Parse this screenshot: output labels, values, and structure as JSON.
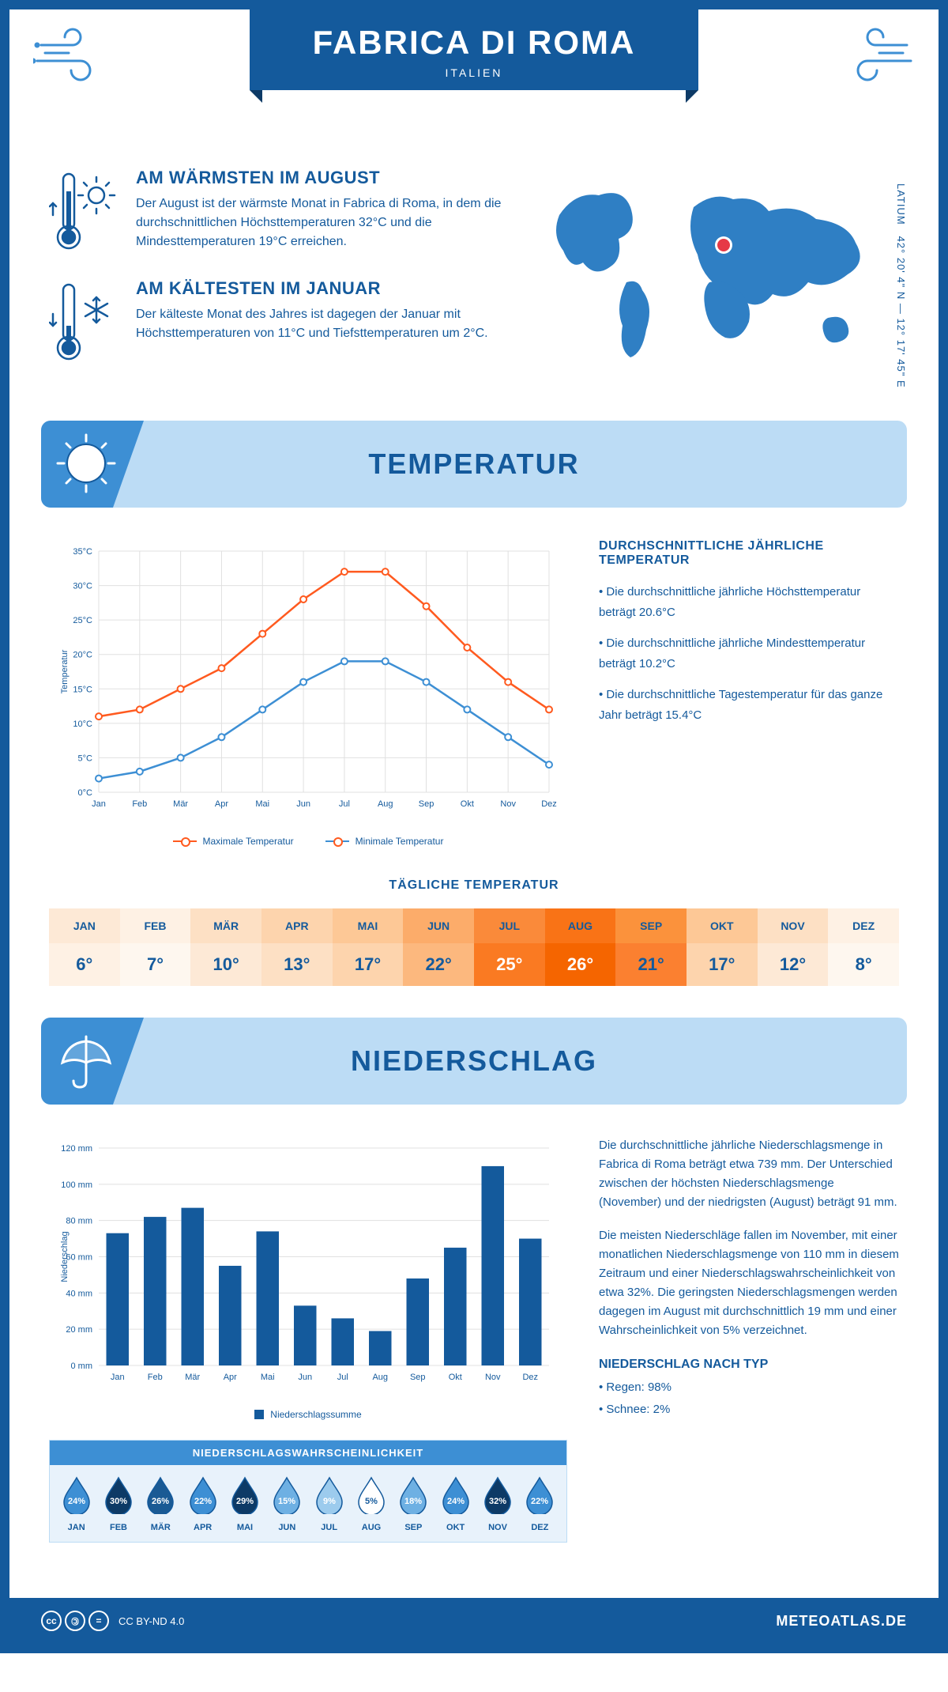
{
  "header": {
    "title": "FABRICA DI ROMA",
    "subtitle": "ITALIEN"
  },
  "coords": {
    "text": "42° 20' 4\" N — 12° 17' 45\" E",
    "region": "LATIUM"
  },
  "intro": {
    "warm": {
      "title": "AM WÄRMSTEN IM AUGUST",
      "text": "Der August ist der wärmste Monat in Fabrica di Roma, in dem die durchschnittlichen Höchsttemperaturen 32°C und die Mindesttemperaturen 19°C erreichen."
    },
    "cold": {
      "title": "AM KÄLTESTEN IM JANUAR",
      "text": "Der kälteste Monat des Jahres ist dagegen der Januar mit Höchsttemperaturen von 11°C und Tiefsttemperaturen um 2°C."
    }
  },
  "temp_section": {
    "title": "TEMPERATUR",
    "info_title": "DURCHSCHNITTLICHE JÄHRLICHE TEMPERATUR",
    "bullet1": "• Die durchschnittliche jährliche Höchsttemperatur beträgt 20.6°C",
    "bullet2": "• Die durchschnittliche jährliche Mindesttemperatur beträgt 10.2°C",
    "bullet3": "• Die durchschnittliche Tagestemperatur für das ganze Jahr beträgt 15.4°C",
    "chart": {
      "months": [
        "Jan",
        "Feb",
        "Mär",
        "Apr",
        "Mai",
        "Jun",
        "Jul",
        "Aug",
        "Sep",
        "Okt",
        "Nov",
        "Dez"
      ],
      "max_values": [
        11,
        12,
        15,
        18,
        23,
        28,
        32,
        32,
        27,
        21,
        16,
        12
      ],
      "min_values": [
        2,
        3,
        5,
        8,
        12,
        16,
        19,
        19,
        16,
        12,
        8,
        4
      ],
      "max_color": "#ff5a1f",
      "min_color": "#3d8fd4",
      "ylim": [
        0,
        35
      ],
      "ytick_step": 5,
      "ylabel": "Temperatur",
      "grid_color": "#e0e0e0",
      "legend_max": "Maximale Temperatur",
      "legend_min": "Minimale Temperatur"
    },
    "daily": {
      "title": "TÄGLICHE TEMPERATUR",
      "months": [
        "JAN",
        "FEB",
        "MÄR",
        "APR",
        "MAI",
        "JUN",
        "JUL",
        "AUG",
        "SEP",
        "OKT",
        "NOV",
        "DEZ"
      ],
      "values": [
        "6°",
        "7°",
        "10°",
        "13°",
        "17°",
        "22°",
        "25°",
        "26°",
        "21°",
        "17°",
        "12°",
        "8°"
      ],
      "month_bg": [
        "#fde9d6",
        "#fef1e4",
        "#fde0c4",
        "#fdd4ad",
        "#fdc896",
        "#fcac6a",
        "#fa8a3a",
        "#f97316",
        "#fb923c",
        "#fdc896",
        "#fde0c4",
        "#fef1e4"
      ],
      "val_bg": [
        "#fef1e4",
        "#fef7ef",
        "#fde9d6",
        "#fde0c4",
        "#fdd4ad",
        "#fcb87e",
        "#fa7a22",
        "#f56500",
        "#fb8030",
        "#fdd4ad",
        "#fde9d6",
        "#fef7ef"
      ],
      "val_color": [
        "#145a9c",
        "#145a9c",
        "#145a9c",
        "#145a9c",
        "#145a9c",
        "#145a9c",
        "#ffffff",
        "#ffffff",
        "#145a9c",
        "#145a9c",
        "#145a9c",
        "#145a9c"
      ]
    }
  },
  "precip_section": {
    "title": "NIEDERSCHLAG",
    "text1": "Die durchschnittliche jährliche Niederschlagsmenge in Fabrica di Roma beträgt etwa 739 mm. Der Unterschied zwischen der höchsten Niederschlagsmenge (November) und der niedrigsten (August) beträgt 91 mm.",
    "text2": "Die meisten Niederschläge fallen im November, mit einer monatlichen Niederschlagsmenge von 110 mm in diesem Zeitraum und einer Niederschlagswahrscheinlichkeit von etwa 32%. Die geringsten Niederschlagsmengen werden dagegen im August mit durchschnittlich 19 mm und einer Wahrscheinlichkeit von 5% verzeichnet.",
    "type_title": "NIEDERSCHLAG NACH TYP",
    "type1": "• Regen: 98%",
    "type2": "• Schnee: 2%",
    "chart": {
      "months": [
        "Jan",
        "Feb",
        "Mär",
        "Apr",
        "Mai",
        "Jun",
        "Jul",
        "Aug",
        "Sep",
        "Okt",
        "Nov",
        "Dez"
      ],
      "values": [
        73,
        82,
        87,
        55,
        74,
        33,
        26,
        19,
        48,
        65,
        110,
        70
      ],
      "bar_color": "#145a9c",
      "ylim": [
        0,
        120
      ],
      "ytick_step": 20,
      "ylabel": "Niederschlag",
      "legend": "Niederschlagssumme"
    },
    "prob": {
      "title": "NIEDERSCHLAGSWAHRSCHEINLICHKEIT",
      "months": [
        "JAN",
        "FEB",
        "MÄR",
        "APR",
        "MAI",
        "JUN",
        "JUL",
        "AUG",
        "SEP",
        "OKT",
        "NOV",
        "DEZ"
      ],
      "values": [
        "24%",
        "30%",
        "26%",
        "22%",
        "29%",
        "15%",
        "9%",
        "5%",
        "18%",
        "24%",
        "32%",
        "22%"
      ],
      "colors": [
        "#3d8fd4",
        "#0d3a66",
        "#1a5a94",
        "#3d8fd4",
        "#0d3a66",
        "#6eb0e3",
        "#9ccbed",
        "#ffffff",
        "#6eb0e3",
        "#3d8fd4",
        "#0d3a66",
        "#3d8fd4"
      ],
      "text_colors": [
        "#fff",
        "#fff",
        "#fff",
        "#fff",
        "#fff",
        "#fff",
        "#fff",
        "#145a9c",
        "#fff",
        "#fff",
        "#fff",
        "#fff"
      ]
    }
  },
  "footer": {
    "license": "CC BY-ND 4.0",
    "site": "METEOATLAS.DE"
  }
}
